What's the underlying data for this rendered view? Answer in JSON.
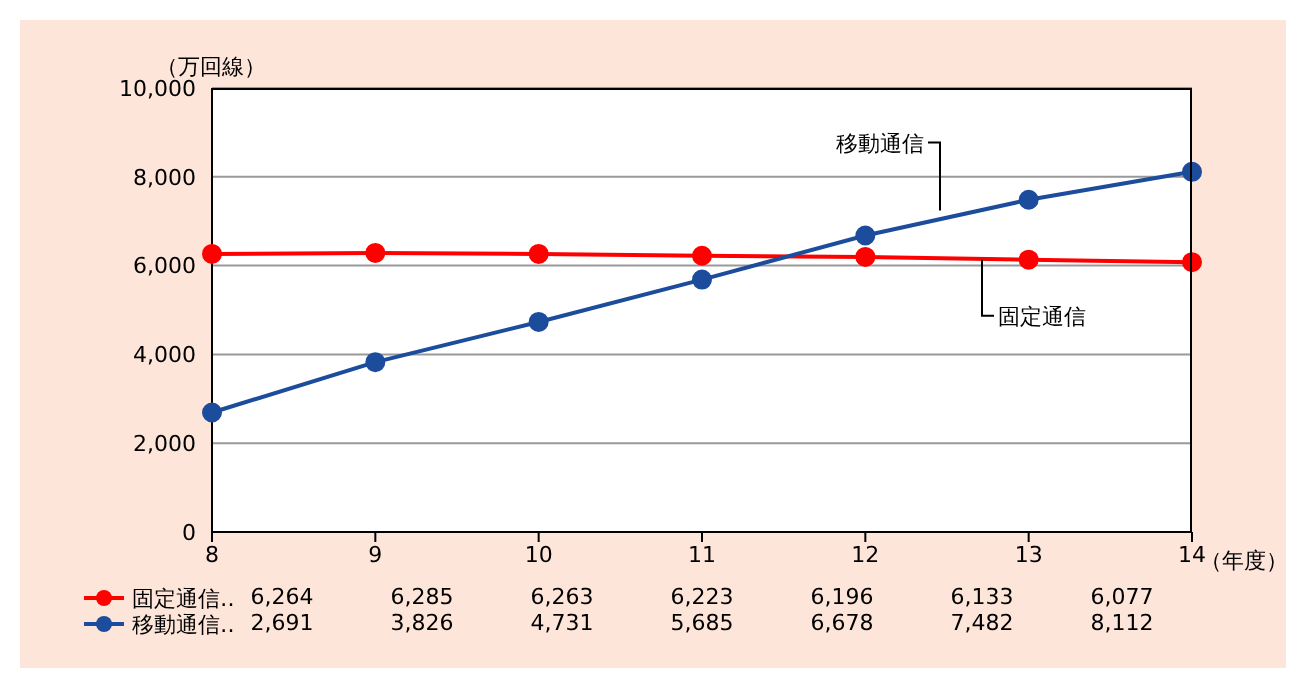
{
  "chart_data": {
    "type": "line",
    "ylabel": "（万回線）",
    "xlabel": "（年度）",
    "categories": [
      "8",
      "9",
      "10",
      "11",
      "12",
      "13",
      "14"
    ],
    "series": [
      {
        "name": "固定通信",
        "color": "#ff0000",
        "values": [
          6264,
          6285,
          6263,
          6223,
          6196,
          6133,
          6077
        ],
        "value_labels": [
          "6,264",
          "6,285",
          "6,263",
          "6,223",
          "6,196",
          "6,133",
          "6,077"
        ]
      },
      {
        "name": "移動通信",
        "color": "#1c4c9c",
        "values": [
          2691,
          3826,
          4731,
          5685,
          6678,
          7482,
          8112
        ],
        "value_labels": [
          "2,691",
          "3,826",
          "4,731",
          "5,685",
          "6,678",
          "7,482",
          "8,112"
        ]
      }
    ],
    "annotations": [
      "‥",
      "‥"
    ],
    "ylim": [
      0,
      10000
    ],
    "yticks": [
      {
        "value": 0,
        "label": "0"
      },
      {
        "value": 2000,
        "label": "2,000"
      },
      {
        "value": 4000,
        "label": "4,000"
      },
      {
        "value": 6000,
        "label": "6,000"
      },
      {
        "value": 8000,
        "label": "8,000"
      },
      {
        "value": 10000,
        "label": "10,000"
      }
    ],
    "grid": "y",
    "marker": "circle",
    "line_style": "solid",
    "legend": "bottom"
  }
}
